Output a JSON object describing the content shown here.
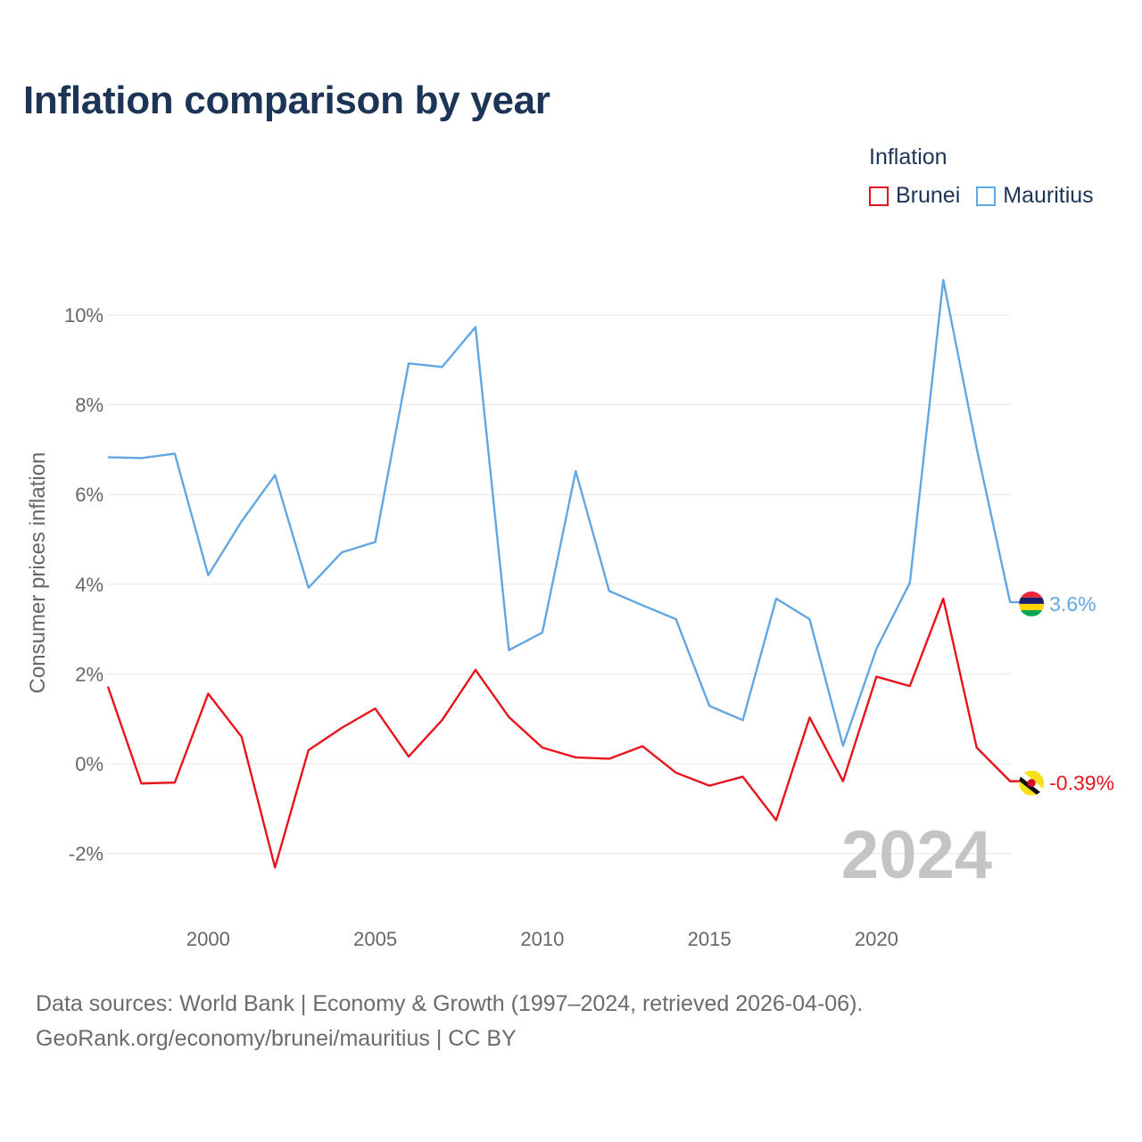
{
  "header": {
    "title": "Inflation comparison by year"
  },
  "legend": {
    "title": "Inflation",
    "items": [
      {
        "label": "Brunei",
        "color": "#e8141c"
      },
      {
        "label": "Mauritius",
        "color": "#62a6e2"
      }
    ]
  },
  "chart_data": {
    "type": "line",
    "title": "Inflation comparison by year",
    "xlabel": "",
    "ylabel": "Consumer prices inflation",
    "x": [
      1997,
      1998,
      1999,
      2000,
      2001,
      2002,
      2003,
      2004,
      2005,
      2006,
      2007,
      2008,
      2009,
      2010,
      2011,
      2012,
      2013,
      2014,
      2015,
      2016,
      2017,
      2018,
      2019,
      2020,
      2021,
      2022,
      2023,
      2024
    ],
    "xlim": [
      1997,
      2024
    ],
    "ylim": [
      -3,
      11
    ],
    "x_ticks": [
      2000,
      2005,
      2010,
      2015,
      2020
    ],
    "x_tick_labels": [
      "2000",
      "2005",
      "2010",
      "2015",
      "2020"
    ],
    "y_ticks": [
      -2,
      0,
      2,
      4,
      6,
      8,
      10
    ],
    "y_tick_labels": [
      "-2%",
      "0%",
      "2%",
      "4%",
      "6%",
      "8%",
      "10%"
    ],
    "grid": true,
    "legend_position": "top-right",
    "year_watermark": "2024",
    "series": [
      {
        "name": "Brunei",
        "color": "#e8141c",
        "values": [
          1.72,
          -0.44,
          -0.42,
          1.56,
          0.6,
          -2.31,
          0.3,
          0.8,
          1.23,
          0.16,
          0.97,
          2.09,
          1.04,
          0.36,
          0.14,
          0.11,
          0.39,
          -0.2,
          -0.49,
          -0.29,
          -1.26,
          1.03,
          -0.39,
          1.94,
          1.73,
          3.68,
          0.36,
          -0.39
        ],
        "end_label": "-0.39%",
        "flag_icon": "brunei-flag-icon"
      },
      {
        "name": "Mauritius",
        "color": "#62a6e2",
        "values": [
          6.83,
          6.81,
          6.91,
          4.2,
          5.4,
          6.43,
          3.92,
          4.71,
          4.94,
          8.92,
          8.84,
          9.73,
          2.53,
          2.92,
          6.52,
          3.85,
          3.53,
          3.22,
          1.29,
          0.97,
          3.68,
          3.22,
          0.4,
          2.56,
          4.03,
          10.78,
          7.03,
          3.6
        ],
        "end_label": "3.6%",
        "flag_icon": "mauritius-flag-icon"
      }
    ]
  },
  "footer": {
    "line1": "Data sources: World Bank | Economy & Growth (1997–2024, retrieved 2026-04-06).",
    "line2": "GeoRank.org/economy/brunei/mauritius | CC BY"
  }
}
